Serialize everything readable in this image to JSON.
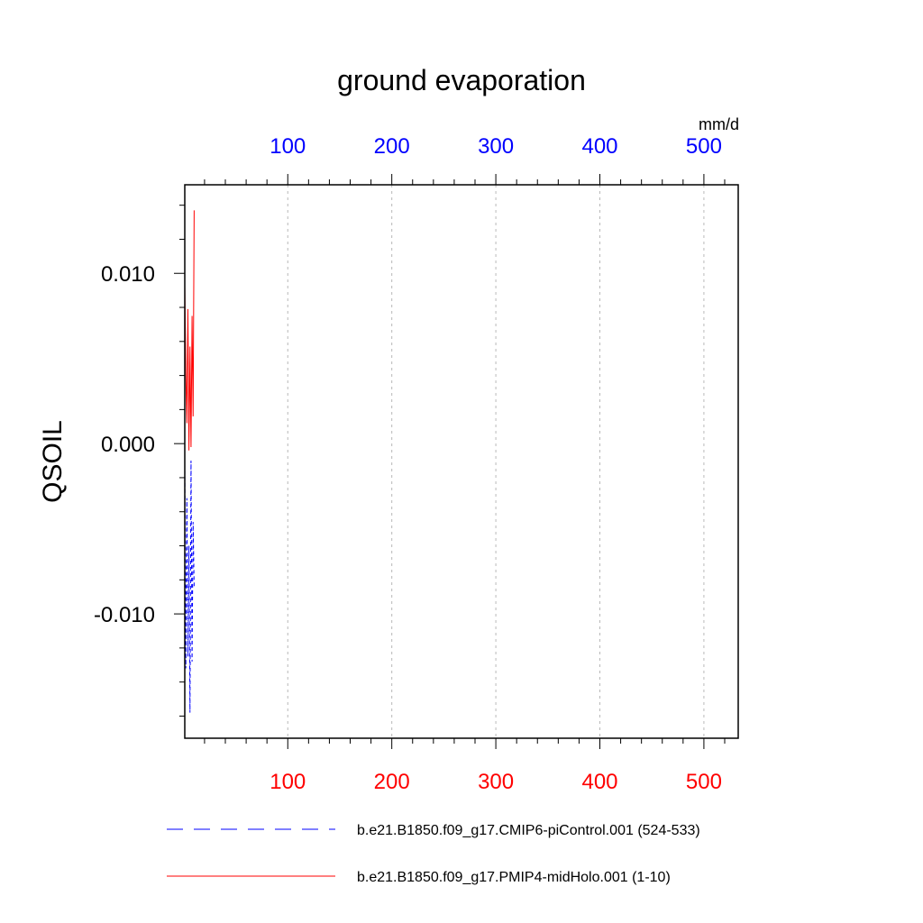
{
  "chart_data": {
    "type": "line",
    "title": "ground evaporation",
    "ylabel": "QSOIL",
    "xlabel": "",
    "top_axis_units": "mm/d",
    "x_range": [
      1,
      533
    ],
    "ylim": [
      -0.0173,
      0.0152
    ],
    "x_ticks": [
      100,
      200,
      300,
      400,
      500
    ],
    "x_tick_labels": [
      "100",
      "200",
      "300",
      "400",
      "500"
    ],
    "y_ticks": [
      -0.01,
      0.0,
      0.01
    ],
    "y_tick_labels": [
      "-0.010",
      "0.000",
      "0.010"
    ],
    "grid": "vertical dashed at major x ticks",
    "legend": "bottom",
    "colors": {
      "top_ticks": "#0000ff",
      "bottom_ticks": "#ff0000",
      "series_control": "#0000ff",
      "series_midholo": "#ff0000"
    },
    "series": [
      {
        "name": "b.e21.B1850.f09_g17.CMIP6-piControl.001 (524-533)",
        "color": "#0000ff",
        "dash": "dashed",
        "x": [
          1,
          2,
          3,
          4,
          5,
          6,
          7,
          8,
          9,
          10
        ],
        "values": [
          -0.0012,
          -0.0132,
          -0.0032,
          -0.0125,
          -0.006,
          -0.0158,
          -0.001,
          -0.0128,
          -0.0046,
          -0.0084
        ]
      },
      {
        "name": "b.e21.B1850.f09_g17.PMIP4-midHolo.001 (1-10)",
        "color": "#ff0000",
        "dash": "solid",
        "x": [
          1,
          2,
          3,
          4,
          5,
          6,
          7,
          8,
          9,
          10
        ],
        "values": [
          0.0093,
          0.0042,
          0.0012,
          0.0079,
          -0.0004,
          0.0057,
          -0.0002,
          0.0075,
          0.0016,
          0.0137
        ]
      }
    ]
  }
}
